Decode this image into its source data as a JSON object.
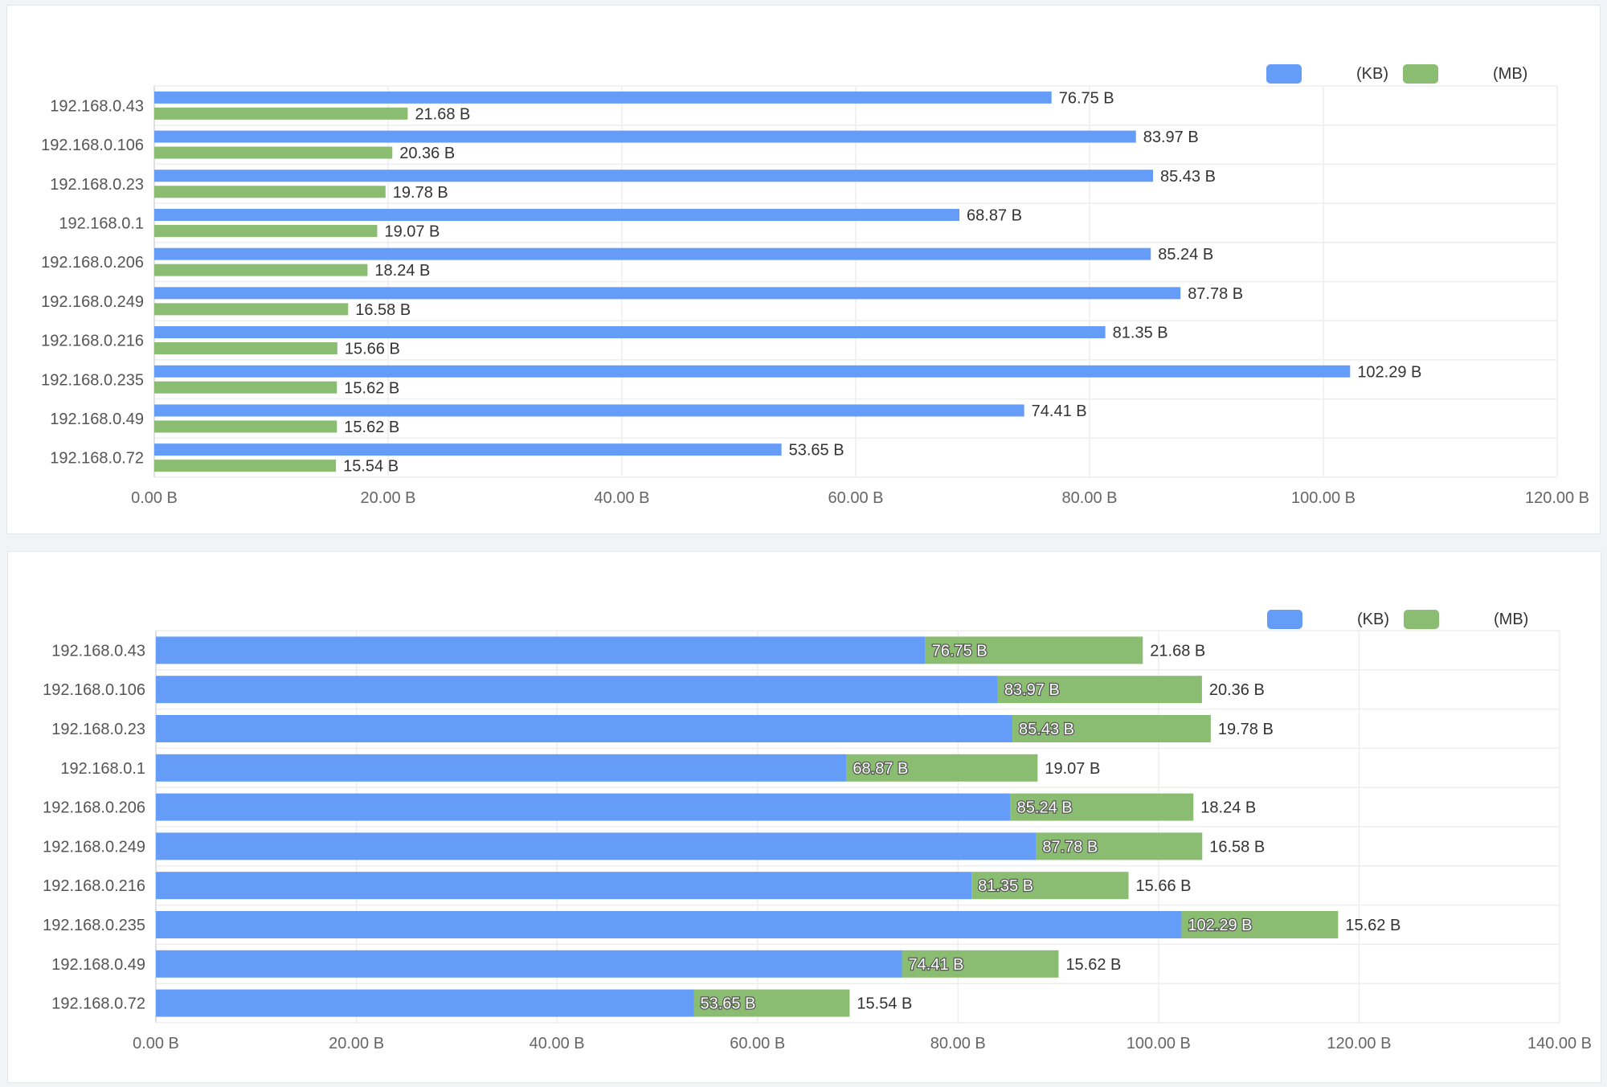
{
  "colors": {
    "blue": "#659cf7",
    "green": "#8abd72",
    "grid": "#eeeeee",
    "text": "#555555",
    "label": "#333333"
  },
  "chart_data": [
    {
      "type": "bar",
      "orientation": "horizontal",
      "stacked": false,
      "categories": [
        "192.168.0.43",
        "192.168.0.106",
        "192.168.0.23",
        "192.168.0.1",
        "192.168.0.206",
        "192.168.0.249",
        "192.168.0.216",
        "192.168.0.235",
        "192.168.0.49",
        "192.168.0.72"
      ],
      "series": [
        {
          "name": "(KB)",
          "color": "#659cf7",
          "values": [
            76.75,
            83.97,
            85.43,
            68.87,
            85.24,
            87.78,
            81.35,
            102.29,
            74.41,
            53.65
          ]
        },
        {
          "name": "(MB)",
          "color": "#8abd72",
          "values": [
            21.68,
            20.36,
            19.78,
            19.07,
            18.24,
            16.58,
            15.66,
            15.62,
            15.62,
            15.54
          ]
        }
      ],
      "xlim": [
        0,
        120
      ],
      "xticks": [
        "0.00 B",
        "20.00 B",
        "40.00 B",
        "60.00 B",
        "80.00 B",
        "100.00 B",
        "120.00 B"
      ],
      "unit": " B",
      "legend": "top-right",
      "grid": true
    },
    {
      "type": "bar",
      "orientation": "horizontal",
      "stacked": true,
      "categories": [
        "192.168.0.43",
        "192.168.0.106",
        "192.168.0.23",
        "192.168.0.1",
        "192.168.0.206",
        "192.168.0.249",
        "192.168.0.216",
        "192.168.0.235",
        "192.168.0.49",
        "192.168.0.72"
      ],
      "series": [
        {
          "name": "(KB)",
          "color": "#659cf7",
          "values": [
            76.75,
            83.97,
            85.43,
            68.87,
            85.24,
            87.78,
            81.35,
            102.29,
            74.41,
            53.65
          ]
        },
        {
          "name": "(MB)",
          "color": "#8abd72",
          "values": [
            21.68,
            20.36,
            19.78,
            19.07,
            18.24,
            16.58,
            15.66,
            15.62,
            15.62,
            15.54
          ]
        }
      ],
      "xlim": [
        0,
        140
      ],
      "xticks": [
        "0.00 B",
        "20.00 B",
        "40.00 B",
        "60.00 B",
        "80.00 B",
        "100.00 B",
        "120.00 B",
        "140.00 B"
      ],
      "unit": " B",
      "legend": "top-right",
      "grid": true
    }
  ]
}
